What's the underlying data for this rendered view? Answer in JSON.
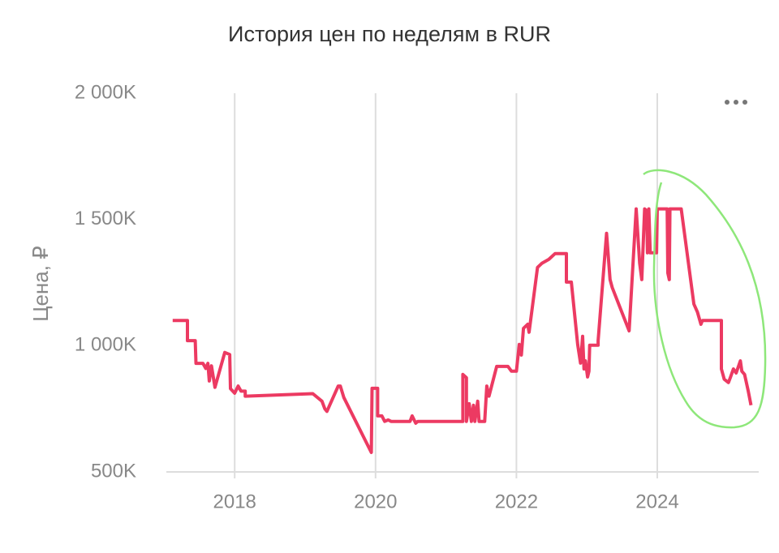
{
  "chart_data": {
    "type": "line",
    "title": "История цен по неделям в RUR",
    "y_label": "Цена, ₽",
    "x": [
      2017.12,
      2017.33,
      2017.33,
      2017.44,
      2017.45,
      2017.55,
      2017.59,
      2017.62,
      2017.64,
      2017.67,
      2017.72,
      2017.86,
      2017.93,
      2017.94,
      2018.0,
      2018.05,
      2018.09,
      2018.15,
      2018.15,
      2019.11,
      2019.24,
      2019.28,
      2019.31,
      2019.47,
      2019.5,
      2019.55,
      2019.94,
      2019.95,
      2020.03,
      2020.03,
      2020.09,
      2020.13,
      2020.18,
      2020.22,
      2020.49,
      2020.52,
      2020.57,
      2020.6,
      2021.24,
      2021.24,
      2021.29,
      2021.29,
      2021.33,
      2021.36,
      2021.39,
      2021.41,
      2021.45,
      2021.47,
      2021.55,
      2021.58,
      2021.61,
      2021.72,
      2021.88,
      2021.93,
      2022.0,
      2022.04,
      2022.07,
      2022.1,
      2022.16,
      2022.18,
      2022.3,
      2022.36,
      2022.46,
      2022.55,
      2022.71,
      2022.71,
      2022.78,
      2022.87,
      2022.91,
      2022.94,
      2022.96,
      2022.98,
      2023.01,
      2023.03,
      2023.04,
      2023.16,
      2023.16,
      2023.28,
      2023.33,
      2023.36,
      2023.6,
      2023.7,
      2023.75,
      2023.78,
      2023.82,
      2023.85,
      2023.86,
      2023.88,
      2023.9,
      2023.99,
      2024.0,
      2024.14,
      2024.15,
      2024.17,
      2024.18,
      2024.34,
      2024.52,
      2024.57,
      2024.62,
      2024.64,
      2024.91,
      2024.91,
      2024.95,
      2025.01,
      2025.04,
      2025.08,
      2025.12,
      2025.18,
      2025.2,
      2025.24,
      2025.29,
      2025.33
    ],
    "series": [
      {
        "name": "Цена",
        "color": "#ec3a62",
        "values": [
          1100000,
          1100000,
          1020000,
          1020000,
          930000,
          930000,
          910000,
          930000,
          860000,
          920000,
          835000,
          973000,
          965000,
          830000,
          812000,
          840000,
          820000,
          820000,
          800000,
          810000,
          780000,
          750000,
          740000,
          840000,
          840000,
          795000,
          577000,
          831000,
          831000,
          722000,
          722000,
          700000,
          706000,
          700000,
          700000,
          722000,
          693000,
          700000,
          700000,
          886000,
          873000,
          700000,
          770000,
          700000,
          764000,
          700000,
          780000,
          700000,
          700000,
          840000,
          800000,
          918000,
          918000,
          899000,
          899000,
          1005000,
          963000,
          1069000,
          1085000,
          1053000,
          1310000,
          1326000,
          1342000,
          1365000,
          1365000,
          1252000,
          1252000,
          1005000,
          931000,
          1037000,
          908000,
          940000,
          876000,
          899000,
          1002000,
          1002000,
          1020000,
          1445000,
          1262000,
          1230000,
          1059000,
          1542000,
          1326000,
          1262000,
          1542000,
          1535000,
          1368000,
          1542000,
          1368000,
          1368000,
          1542000,
          1542000,
          1288000,
          1262000,
          1542000,
          1542000,
          1165000,
          1133000,
          1085000,
          1100000,
          1100000,
          908000,
          867000,
          854000,
          876000,
          908000,
          892000,
          940000,
          899000,
          886000,
          822000,
          764000
        ]
      }
    ],
    "xlim": [
      2017.03,
      2025.44
    ],
    "xticks": [
      2018,
      2020,
      2022,
      2024
    ],
    "ylim": [
      500000,
      2000000
    ],
    "yticks": [
      {
        "value": 500000,
        "label": "500K"
      },
      {
        "value": 1000000,
        "label": "1 000K"
      },
      {
        "value": 1500000,
        "label": "1 500K"
      },
      {
        "value": 2000000,
        "label": "2 000K"
      }
    ],
    "grid": "x"
  }
}
